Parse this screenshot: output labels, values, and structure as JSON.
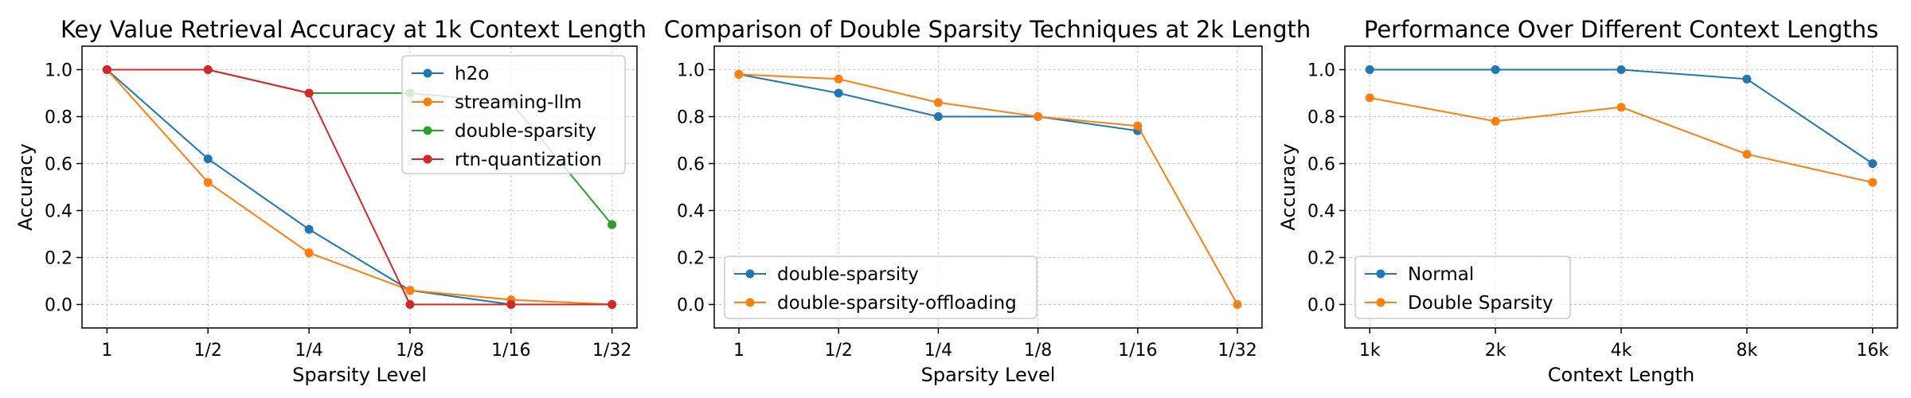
{
  "chart_data": [
    {
      "type": "line",
      "title": "Key Value Retrieval Accuracy at 1k Context Length",
      "xlabel": "Sparsity Level",
      "ylabel": "Accuracy",
      "categories": [
        "1",
        "1/2",
        "1/4",
        "1/8",
        "1/16",
        "1/32"
      ],
      "ylim": [
        -0.1,
        1.1
      ],
      "yticks": [
        0.0,
        0.2,
        0.4,
        0.6,
        0.8,
        1.0
      ],
      "ytick_labels": [
        "0.0",
        "0.2",
        "0.4",
        "0.6",
        "0.8",
        "1.0"
      ],
      "grid": true,
      "legend_position": "upper-right",
      "series": [
        {
          "name": "h2o",
          "color": "#1f77b4",
          "values": [
            1.0,
            0.62,
            0.32,
            0.06,
            0.0,
            0.0
          ]
        },
        {
          "name": "streaming-llm",
          "color": "#ff7f0e",
          "values": [
            1.0,
            0.52,
            0.22,
            0.06,
            0.02,
            0.0
          ]
        },
        {
          "name": "double-sparsity",
          "color": "#2ca02c",
          "values": [
            1.0,
            1.0,
            0.9,
            0.9,
            0.86,
            0.34
          ]
        },
        {
          "name": "rtn-quantization",
          "color": "#d62728",
          "values": [
            1.0,
            1.0,
            0.9,
            0.0,
            0.0,
            0.0
          ]
        }
      ]
    },
    {
      "type": "line",
      "title": "Comparison of Double Sparsity Techniques at 2k Length",
      "xlabel": "Sparsity Level",
      "ylabel": "",
      "categories": [
        "1",
        "1/2",
        "1/4",
        "1/8",
        "1/16",
        "1/32"
      ],
      "ylim": [
        -0.1,
        1.1
      ],
      "yticks": [
        0.0,
        0.2,
        0.4,
        0.6,
        0.8,
        1.0
      ],
      "ytick_labels": [
        "0.0",
        "0.2",
        "0.4",
        "0.6",
        "0.8",
        "1.0"
      ],
      "grid": true,
      "legend_position": "lower-left",
      "series": [
        {
          "name": "double-sparsity",
          "color": "#1f77b4",
          "values": [
            0.98,
            0.9,
            0.8,
            0.8,
            0.74,
            null
          ]
        },
        {
          "name": "double-sparsity-offloading",
          "color": "#ff7f0e",
          "values": [
            0.98,
            0.96,
            0.86,
            0.8,
            0.76,
            0.0
          ]
        }
      ]
    },
    {
      "type": "line",
      "title": "Performance Over Different Context Lengths",
      "xlabel": "Context Length",
      "ylabel": "Accuracy",
      "categories": [
        "1k",
        "2k",
        "4k",
        "8k",
        "16k"
      ],
      "ylim": [
        -0.1,
        1.1
      ],
      "yticks": [
        0.0,
        0.2,
        0.4,
        0.6,
        0.8,
        1.0
      ],
      "ytick_labels": [
        "0.0",
        "0.2",
        "0.4",
        "0.6",
        "0.8",
        "1.0"
      ],
      "grid": true,
      "legend_position": "lower-left",
      "series": [
        {
          "name": "Normal",
          "color": "#1f77b4",
          "values": [
            1.0,
            1.0,
            1.0,
            0.96,
            0.6
          ]
        },
        {
          "name": "Double Sparsity",
          "color": "#ff7f0e",
          "values": [
            0.88,
            0.78,
            0.84,
            0.64,
            0.52
          ]
        }
      ]
    }
  ]
}
